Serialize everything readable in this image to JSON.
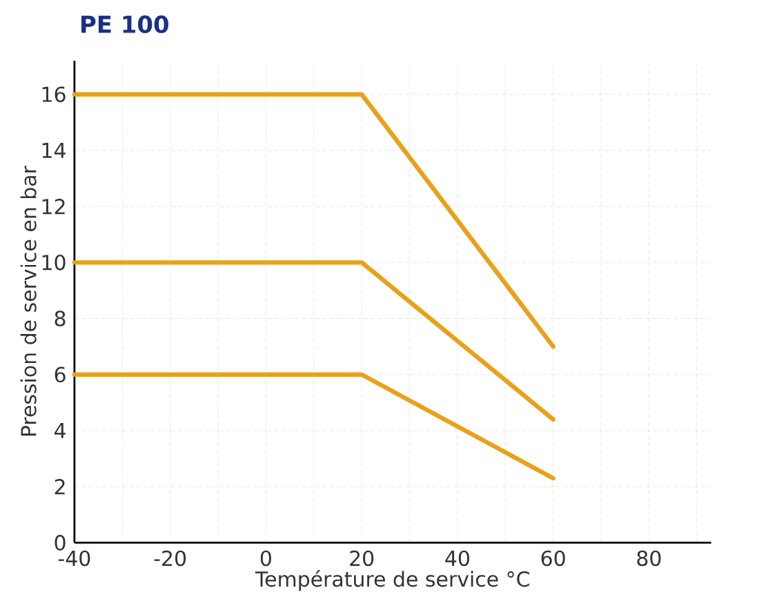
{
  "chart_data": {
    "type": "line",
    "title": "PE 100",
    "xlabel": "Température de service °C",
    "ylabel": "Pression de service en bar",
    "x": [
      -40,
      20,
      60
    ],
    "series": [
      {
        "color": "#e9a11a",
        "values": [
          16,
          16,
          7
        ]
      },
      {
        "color": "#e9a11a",
        "values": [
          10,
          10,
          4.4
        ]
      },
      {
        "color": "#e9a11a",
        "values": [
          6,
          6,
          2.3
        ]
      }
    ],
    "xlim": [
      -40,
      93
    ],
    "ylim": [
      0,
      17.2
    ],
    "xticks": [
      -40,
      {
        "value": -30,
        "label": null
      },
      -20,
      {
        "value": -10,
        "label": null
      },
      0,
      {
        "value": 10,
        "label": null
      },
      20,
      {
        "value": 30,
        "label": null
      },
      40,
      {
        "value": 50,
        "label": null
      },
      60,
      {
        "value": 70,
        "label": null
      },
      80,
      {
        "value": 90,
        "label": null
      }
    ],
    "yticks": [
      0,
      2,
      4,
      6,
      8,
      10,
      12,
      14,
      16
    ],
    "grid": true,
    "marker": "none",
    "line_style": "solid"
  }
}
